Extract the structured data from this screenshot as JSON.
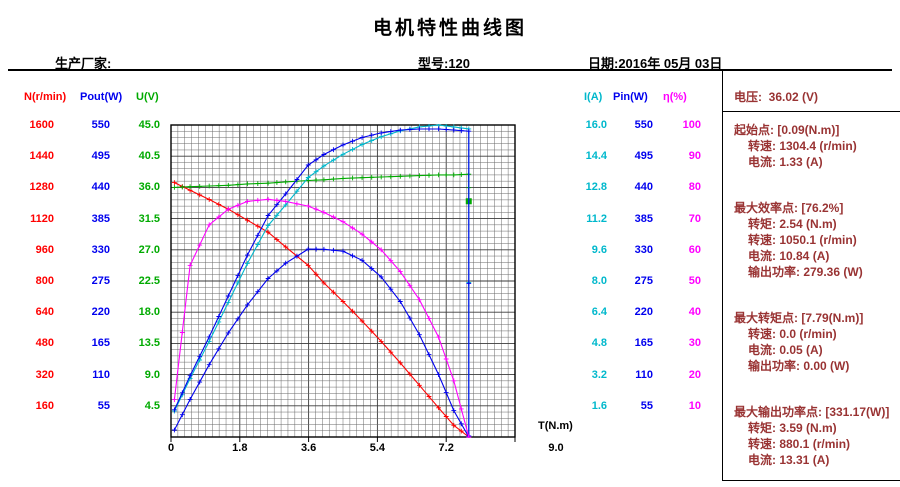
{
  "header": {
    "title": "电机特性曲线图",
    "manufacturer_label": "生产厂家:",
    "model_label": "型号:120",
    "date_label": "日期:2016年 05月 03日"
  },
  "axes": {
    "left": [
      {
        "name": "N(r/min)",
        "color": "#ff0000",
        "ticks": [
          "1600",
          "1440",
          "1280",
          "1120",
          "960",
          "800",
          "640",
          "480",
          "320",
          "160"
        ]
      },
      {
        "name": "Pout(W)",
        "color": "#0000ee",
        "ticks": [
          "550",
          "495",
          "440",
          "385",
          "330",
          "275",
          "220",
          "165",
          "110",
          "55"
        ]
      },
      {
        "name": "U(V)",
        "color": "#00aa00",
        "ticks": [
          "45.0",
          "40.5",
          "36.0",
          "31.5",
          "27.0",
          "22.5",
          "18.0",
          "13.5",
          "9.0",
          "4.5"
        ]
      }
    ],
    "right": [
      {
        "name": "I(A)",
        "color": "#00b8cc",
        "ticks": [
          "16.0",
          "14.4",
          "12.8",
          "11.2",
          "9.6",
          "8.0",
          "6.4",
          "4.8",
          "3.2",
          "1.6"
        ]
      },
      {
        "name": "Pin(W)",
        "color": "#0000ee",
        "ticks": [
          "550",
          "495",
          "440",
          "385",
          "330",
          "275",
          "220",
          "165",
          "110",
          "55"
        ]
      },
      {
        "name": "η(%)",
        "color": "#ff00ff",
        "ticks": [
          "100",
          "90",
          "80",
          "70",
          "60",
          "50",
          "40",
          "30",
          "20",
          "10"
        ]
      }
    ],
    "x": {
      "name": "T(N.m)",
      "ticks": [
        "0",
        "1.8",
        "3.6",
        "5.4",
        "7.2",
        "9.0"
      ],
      "min": 0,
      "max": 9
    }
  },
  "chart_data": {
    "type": "line",
    "title": "电机特性曲线图",
    "xlabel": "T(N.m)",
    "x_range": [
      0,
      9
    ],
    "grid": true,
    "series": [
      {
        "name": "N",
        "axis_label": "N(r/min)",
        "color": "#ff0000",
        "axis_max": 1600,
        "x": [
          0.09,
          0.5,
          1.0,
          1.5,
          2.0,
          2.54,
          3.0,
          3.59,
          4.0,
          4.5,
          5.0,
          5.5,
          6.0,
          6.5,
          7.0,
          7.4,
          7.79
        ],
        "y": [
          1304.4,
          1265,
          1218,
          1168,
          1112,
          1050.1,
          975,
          880.1,
          790,
          695,
          595,
          490,
          380,
          265,
          150,
          60,
          0
        ]
      },
      {
        "name": "Pout",
        "axis_label": "Pout(W)",
        "color": "#0000ee",
        "axis_max": 550,
        "x": [
          0.09,
          0.5,
          1.0,
          1.5,
          2.0,
          2.54,
          3.0,
          3.59,
          4.0,
          4.5,
          5.0,
          5.5,
          6.0,
          6.5,
          7.0,
          7.4,
          7.79
        ],
        "y": [
          12.3,
          66.2,
          127.5,
          183.5,
          232.9,
          279.4,
          306.3,
          331.2,
          330.9,
          327.5,
          311.5,
          282.2,
          238.8,
          180.4,
          110.0,
          46.5,
          0
        ]
      },
      {
        "name": "U",
        "axis_label": "U(V)",
        "color": "#00aa00",
        "axis_max": 45,
        "end_marker": "square",
        "x": [
          0.09,
          0.5,
          1.0,
          1.5,
          2.0,
          2.54,
          3.0,
          3.59,
          4.0,
          4.5,
          5.0,
          5.5,
          6.0,
          6.5,
          7.0,
          7.4,
          7.79,
          7.79
        ],
        "y": [
          36.0,
          36.1,
          36.2,
          36.3,
          36.5,
          36.6,
          36.8,
          37.0,
          37.1,
          37.3,
          37.4,
          37.5,
          37.6,
          37.7,
          37.8,
          37.8,
          37.9,
          34.0
        ]
      },
      {
        "name": "I",
        "axis_label": "I(A)",
        "color": "#00b8cc",
        "axis_max": 16,
        "x": [
          0.09,
          0.5,
          1.0,
          1.5,
          2.0,
          2.54,
          3.0,
          3.59,
          4.0,
          4.5,
          5.0,
          5.5,
          6.0,
          6.5,
          7.0,
          7.4,
          7.79,
          7.79
        ],
        "y": [
          1.33,
          3.0,
          4.9,
          6.9,
          8.9,
          10.84,
          11.9,
          13.31,
          13.9,
          14.5,
          15.0,
          15.4,
          15.7,
          15.9,
          16.0,
          15.9,
          15.8,
          0.05
        ]
      },
      {
        "name": "Pin",
        "axis_label": "Pin(W)",
        "color": "#0000ee",
        "axis_max": 550,
        "x": [
          0.09,
          0.5,
          1.0,
          1.5,
          2.0,
          2.54,
          3.0,
          3.59,
          4.0,
          4.5,
          5.0,
          5.5,
          6.0,
          6.5,
          7.0,
          7.4,
          7.79,
          7.79
        ],
        "y": [
          47.9,
          108.1,
          176.5,
          248.5,
          320.6,
          390.5,
          428.6,
          479.4,
          498,
          515,
          528,
          536,
          541,
          543,
          543,
          541,
          539,
          1.8
        ]
      },
      {
        "name": "eta",
        "axis_label": "η(%)",
        "color": "#ff00ff",
        "axis_max": 100,
        "x": [
          0.09,
          0.5,
          1.0,
          1.5,
          2.0,
          2.54,
          3.0,
          3.59,
          4.0,
          4.5,
          5.0,
          5.5,
          6.0,
          6.5,
          7.0,
          7.4,
          7.79
        ],
        "y": [
          12,
          55,
          68,
          73,
          75.5,
          76.2,
          75.5,
          74,
          72,
          69,
          65,
          60,
          53,
          44,
          32,
          18,
          0
        ]
      }
    ]
  },
  "panel": {
    "text_color": "#993333",
    "voltage": "电压:  36.02 (V)",
    "sections": [
      {
        "header": "起始点: [0.09(N.m)]",
        "lines": [
          "转速: 1304.4 (r/min)",
          "电流: 1.33 (A)"
        ]
      },
      {
        "header": "最大效率点: [76.2%]",
        "lines": [
          "转矩: 2.54 (N.m)",
          "转速: 1050.1 (r/min)",
          "电流: 10.84 (A)",
          "输出功率: 279.36 (W)"
        ]
      },
      {
        "header": "最大转矩点: [7.79(N.m)]",
        "lines": [
          "转速: 0.0 (r/min)",
          "电流: 0.05 (A)",
          "输出功率: 0.00 (W)"
        ]
      },
      {
        "header": "最大输出功率点: [331.17(W)]",
        "lines": [
          "转矩: 3.59 (N.m)",
          "转速: 880.1 (r/min)",
          "电流: 13.31 (A)"
        ]
      }
    ]
  }
}
